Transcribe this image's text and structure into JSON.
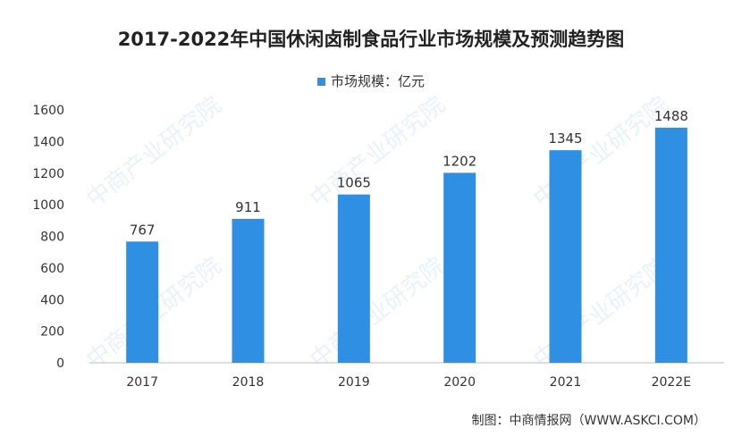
{
  "watermark": "中商产业研究院",
  "source": "制图：中商情报网（WWW.ASKCI.COM）",
  "colors": {
    "bar": "#2e8fe3",
    "axis": "#bfbfbf",
    "text": "#333333"
  },
  "chart_data": {
    "type": "bar",
    "title": "2017-2022年中国休闲卤制食品行业市场规模及预测趋势图",
    "legend": "市场规模：亿元",
    "legend_position": "top",
    "categories": [
      "2017",
      "2018",
      "2019",
      "2020",
      "2021",
      "2022E"
    ],
    "series": [
      {
        "name": "市场规模：亿元",
        "values": [
          767,
          911,
          1065,
          1202,
          1345,
          1488
        ]
      }
    ],
    "data_labels": [
      "767",
      "911",
      "1065",
      "1202",
      "1345",
      "1488"
    ],
    "yticks": [
      "0",
      "200",
      "400",
      "600",
      "800",
      "1000",
      "1200",
      "1400",
      "1600"
    ],
    "ylim": [
      0,
      1600
    ],
    "grid": false
  }
}
